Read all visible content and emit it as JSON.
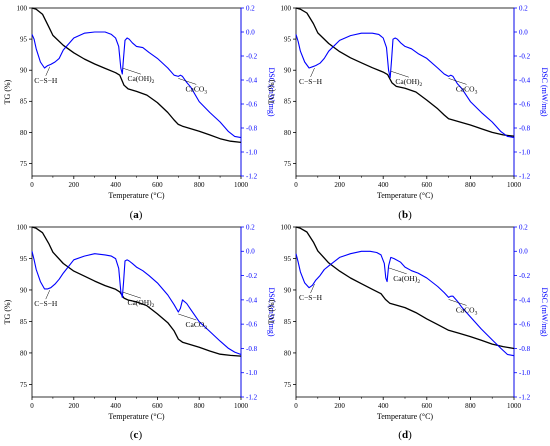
{
  "chart_data": [
    {
      "type": "line",
      "panel_label": "(a)",
      "xlabel": "Temperature (°C)",
      "ylabel_left": "TG (%)",
      "ylabel_right": "DSC (mW/mg)",
      "xlim": [
        0,
        1000
      ],
      "ylim_left": [
        73,
        100
      ],
      "ylim_right": [
        -1.2,
        0.2
      ],
      "x_ticks": [
        "0",
        "200",
        "400",
        "600",
        "800",
        "1000"
      ],
      "y_left_ticks": [
        "75",
        "80",
        "85",
        "90",
        "95",
        "100"
      ],
      "y_right_ticks": [
        "-1.2",
        "-1.0",
        "-0.8",
        "-0.6",
        "-0.4",
        "-0.2",
        "0.0",
        "0.2"
      ],
      "annotations": [
        {
          "text": "C−S−H",
          "sub": "",
          "x": 85
        },
        {
          "text": "Ca(OH)",
          "sub": "2",
          "x": 435
        },
        {
          "text": "CaCO",
          "sub": "3",
          "x": 700
        }
      ],
      "series": [
        {
          "axis": "left",
          "color": "#000000",
          "x": [
            0,
            20,
            50,
            80,
            100,
            150,
            200,
            250,
            300,
            350,
            400,
            420,
            440,
            460,
            500,
            550,
            600,
            650,
            680,
            700,
            720,
            750,
            800,
            850,
            900,
            950,
            1000
          ],
          "y": [
            100,
            99.8,
            99,
            97,
            95.6,
            94,
            92.8,
            91.8,
            91,
            90.3,
            89.6,
            89.2,
            87.6,
            87,
            86.6,
            86,
            84.8,
            83.2,
            82,
            81.3,
            81,
            80.7,
            80.2,
            79.6,
            79,
            78.6,
            78.4
          ]
        },
        {
          "axis": "right",
          "color": "#0000ff",
          "x": [
            0,
            10,
            20,
            40,
            60,
            75,
            90,
            110,
            130,
            150,
            200,
            250,
            300,
            350,
            380,
            400,
            415,
            425,
            432,
            438,
            445,
            455,
            465,
            480,
            500,
            530,
            560,
            600,
            650,
            680,
            700,
            710,
            720,
            740,
            760,
            800,
            850,
            900,
            940,
            970,
            1000
          ],
          "y": [
            -0.02,
            -0.06,
            -0.14,
            -0.25,
            -0.3,
            -0.28,
            -0.27,
            -0.25,
            -0.22,
            -0.15,
            -0.05,
            -0.01,
            0.0,
            0.0,
            -0.02,
            -0.05,
            -0.12,
            -0.3,
            -0.35,
            -0.22,
            -0.07,
            -0.05,
            -0.06,
            -0.09,
            -0.12,
            -0.13,
            -0.17,
            -0.22,
            -0.3,
            -0.36,
            -0.37,
            -0.36,
            -0.37,
            -0.42,
            -0.46,
            -0.58,
            -0.67,
            -0.75,
            -0.83,
            -0.87,
            -0.88
          ]
        }
      ]
    },
    {
      "type": "line",
      "panel_label": "(b)",
      "xlabel": "Temperature (°C)",
      "ylabel_left": "TG (%)",
      "ylabel_right": "DSC (mW/mg)",
      "xlim": [
        0,
        1000
      ],
      "ylim_left": [
        73,
        100
      ],
      "ylim_right": [
        -1.2,
        0.2
      ],
      "x_ticks": [
        "0",
        "200",
        "400",
        "600",
        "800",
        "1000"
      ],
      "y_left_ticks": [
        "75",
        "80",
        "85",
        "90",
        "95",
        "100"
      ],
      "y_right_ticks": [
        "-1.2",
        "-1.0",
        "-0.8",
        "-0.6",
        "-0.4",
        "-0.2",
        "0.0",
        "0.2"
      ],
      "annotations": [
        {
          "text": "C−S−H",
          "sub": "",
          "x": 85
        },
        {
          "text": "Ca(OH)",
          "sub": "2",
          "x": 435
        },
        {
          "text": "CaCO",
          "sub": "3",
          "x": 700
        }
      ],
      "series": [
        {
          "axis": "left",
          "color": "#000000",
          "x": [
            0,
            20,
            50,
            80,
            100,
            150,
            200,
            250,
            300,
            350,
            400,
            420,
            440,
            460,
            500,
            550,
            600,
            650,
            680,
            700,
            720,
            750,
            800,
            850,
            900,
            950,
            1000
          ],
          "y": [
            100,
            99.8,
            99.2,
            97.5,
            96,
            94.3,
            93,
            92,
            91.2,
            90.4,
            89.7,
            89.3,
            88,
            87.4,
            87.1,
            86.5,
            85.2,
            83.8,
            82.8,
            82.2,
            82,
            81.7,
            81.2,
            80.6,
            80,
            79.6,
            79.4
          ]
        },
        {
          "axis": "right",
          "color": "#0000ff",
          "x": [
            0,
            10,
            20,
            40,
            60,
            75,
            90,
            110,
            130,
            150,
            200,
            250,
            300,
            350,
            380,
            400,
            415,
            425,
            432,
            438,
            445,
            455,
            465,
            480,
            500,
            530,
            560,
            600,
            650,
            680,
            700,
            710,
            720,
            740,
            760,
            800,
            850,
            900,
            940,
            970,
            1000
          ],
          "y": [
            -0.02,
            -0.08,
            -0.16,
            -0.25,
            -0.3,
            -0.29,
            -0.28,
            -0.26,
            -0.22,
            -0.16,
            -0.07,
            -0.03,
            -0.01,
            -0.01,
            -0.02,
            -0.05,
            -0.13,
            -0.32,
            -0.38,
            -0.24,
            -0.06,
            -0.05,
            -0.06,
            -0.09,
            -0.12,
            -0.14,
            -0.18,
            -0.22,
            -0.3,
            -0.35,
            -0.37,
            -0.36,
            -0.37,
            -0.43,
            -0.47,
            -0.58,
            -0.67,
            -0.75,
            -0.83,
            -0.87,
            -0.88
          ]
        }
      ]
    },
    {
      "type": "line",
      "panel_label": "(c)",
      "xlabel": "Temperature (°C)",
      "ylabel_left": "TG (%)",
      "ylabel_right": "DSC (mW/mg)",
      "xlim": [
        0,
        1000
      ],
      "ylim_left": [
        73,
        100
      ],
      "ylim_right": [
        -1.2,
        0.2
      ],
      "x_ticks": [
        "0",
        "200",
        "400",
        "600",
        "800",
        "1000"
      ],
      "y_left_ticks": [
        "75",
        "80",
        "85",
        "90",
        "95",
        "100"
      ],
      "y_right_ticks": [
        "-1.2",
        "-1.0",
        "-0.8",
        "-0.6",
        "-0.4",
        "-0.2",
        "0.0",
        "0.2"
      ],
      "annotations": [
        {
          "text": "C−S−H",
          "sub": "",
          "x": 85
        },
        {
          "text": "Ca(OH)",
          "sub": "2",
          "x": 435
        },
        {
          "text": "CaCO",
          "sub": "3",
          "x": 700
        }
      ],
      "series": [
        {
          "axis": "left",
          "color": "#000000",
          "x": [
            0,
            20,
            50,
            80,
            100,
            150,
            200,
            250,
            300,
            350,
            400,
            420,
            440,
            460,
            500,
            550,
            600,
            650,
            680,
            700,
            720,
            750,
            800,
            850,
            900,
            950,
            1000
          ],
          "y": [
            100,
            99.8,
            99.1,
            97.4,
            96,
            94.2,
            93,
            92.2,
            91.4,
            90.7,
            90.1,
            89.7,
            88.7,
            88.4,
            88.1,
            87.5,
            86.2,
            84.8,
            83.5,
            82.2,
            81.7,
            81.4,
            80.9,
            80.3,
            79.8,
            79.6,
            79.5
          ]
        },
        {
          "axis": "right",
          "color": "#0000ff",
          "x": [
            0,
            10,
            20,
            40,
            60,
            75,
            90,
            110,
            130,
            150,
            200,
            250,
            300,
            350,
            380,
            400,
            415,
            425,
            432,
            438,
            445,
            455,
            465,
            480,
            500,
            530,
            560,
            600,
            650,
            680,
            700,
            710,
            720,
            740,
            760,
            800,
            850,
            900,
            940,
            970,
            1000
          ],
          "y": [
            0.0,
            -0.07,
            -0.15,
            -0.25,
            -0.31,
            -0.31,
            -0.3,
            -0.27,
            -0.23,
            -0.18,
            -0.07,
            -0.04,
            -0.02,
            -0.03,
            -0.04,
            -0.06,
            -0.14,
            -0.33,
            -0.38,
            -0.26,
            -0.08,
            -0.07,
            -0.08,
            -0.1,
            -0.13,
            -0.16,
            -0.2,
            -0.26,
            -0.36,
            -0.44,
            -0.5,
            -0.47,
            -0.4,
            -0.43,
            -0.48,
            -0.58,
            -0.66,
            -0.74,
            -0.8,
            -0.83,
            -0.85
          ]
        }
      ]
    },
    {
      "type": "line",
      "panel_label": "(d)",
      "xlabel": "Temperature (°C)",
      "ylabel_left": "TG (%)",
      "ylabel_right": "DSC (mW/mg)",
      "xlim": [
        0,
        1000
      ],
      "ylim_left": [
        73,
        100
      ],
      "ylim_right": [
        -1.2,
        0.2
      ],
      "x_ticks": [
        "0",
        "200",
        "400",
        "600",
        "800",
        "1000"
      ],
      "y_left_ticks": [
        "75",
        "80",
        "85",
        "90",
        "95",
        "100"
      ],
      "y_right_ticks": [
        "-1.2",
        "-1.0",
        "-0.8",
        "-0.6",
        "-0.4",
        "-0.2",
        "0.0",
        "0.2"
      ],
      "annotations": [
        {
          "text": "C−S−H",
          "sub": "",
          "x": 85
        },
        {
          "text": "Ca(OH)",
          "sub": "2",
          "x": 425
        },
        {
          "text": "CaCO",
          "sub": "3",
          "x": 700
        }
      ],
      "series": [
        {
          "axis": "left",
          "color": "#000000",
          "x": [
            0,
            20,
            50,
            80,
            100,
            150,
            200,
            250,
            300,
            350,
            390,
            410,
            430,
            460,
            500,
            550,
            600,
            650,
            700,
            750,
            800,
            850,
            900,
            950,
            1000
          ],
          "y": [
            100,
            99.8,
            99.2,
            97.6,
            96.2,
            94.3,
            93,
            91.9,
            91,
            90.1,
            89.4,
            88.5,
            87.9,
            87.6,
            87.2,
            86.4,
            85.4,
            84.5,
            83.6,
            83.1,
            82.6,
            82,
            81.4,
            81,
            80.7
          ]
        },
        {
          "axis": "right",
          "color": "#0000ff",
          "x": [
            0,
            10,
            20,
            40,
            60,
            75,
            90,
            110,
            130,
            150,
            200,
            250,
            300,
            340,
            370,
            390,
            405,
            412,
            418,
            425,
            435,
            450,
            480,
            500,
            530,
            560,
            600,
            650,
            680,
            700,
            710,
            720,
            740,
            760,
            800,
            850,
            900,
            940,
            970,
            1000
          ],
          "y": [
            -0.02,
            -0.09,
            -0.17,
            -0.26,
            -0.3,
            -0.28,
            -0.24,
            -0.2,
            -0.15,
            -0.12,
            -0.05,
            -0.02,
            0.0,
            0.0,
            -0.01,
            -0.03,
            -0.1,
            -0.22,
            -0.25,
            -0.12,
            -0.05,
            -0.06,
            -0.09,
            -0.13,
            -0.16,
            -0.18,
            -0.22,
            -0.29,
            -0.34,
            -0.38,
            -0.37,
            -0.37,
            -0.41,
            -0.46,
            -0.54,
            -0.64,
            -0.73,
            -0.8,
            -0.85,
            -0.86
          ]
        }
      ]
    }
  ]
}
